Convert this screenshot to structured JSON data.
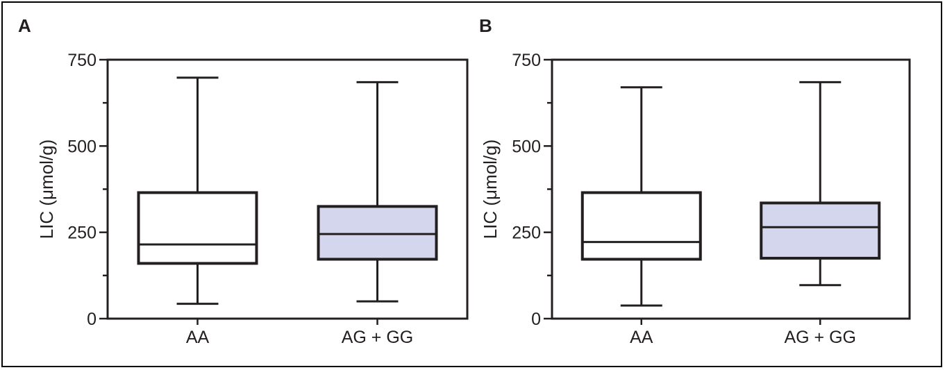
{
  "colors": {
    "line": "#231f20",
    "fill_aa": "#ffffff",
    "fill_ag_gg": "#d3d6ec"
  },
  "chart_data": [
    {
      "type": "box",
      "panel_label": "A",
      "ylabel": "LIC (μmol/g)",
      "ylim": [
        0,
        750
      ],
      "yticks": [
        0,
        250,
        500,
        750
      ],
      "yminor_step": 125,
      "categories": [
        "AA",
        "AG + GG"
      ],
      "boxes": [
        {
          "category": "AA",
          "min": 43,
          "q1": 160,
          "median": 215,
          "q3": 365,
          "max": 698,
          "color": "#ffffff"
        },
        {
          "category": "AG + GG",
          "min": 50,
          "q1": 172,
          "median": 245,
          "q3": 325,
          "max": 685,
          "color": "#d3d6ec"
        }
      ]
    },
    {
      "type": "box",
      "panel_label": "B",
      "ylabel": "LIC (μmol/g)",
      "ylim": [
        0,
        750
      ],
      "yticks": [
        0,
        250,
        500,
        750
      ],
      "yminor_step": 125,
      "categories": [
        "AA",
        "AG + GG"
      ],
      "boxes": [
        {
          "category": "AA",
          "min": 38,
          "q1": 172,
          "median": 222,
          "q3": 365,
          "max": 670,
          "color": "#ffffff"
        },
        {
          "category": "AG + GG",
          "min": 97,
          "q1": 175,
          "median": 265,
          "q3": 335,
          "max": 685,
          "color": "#d3d6ec"
        }
      ]
    }
  ]
}
